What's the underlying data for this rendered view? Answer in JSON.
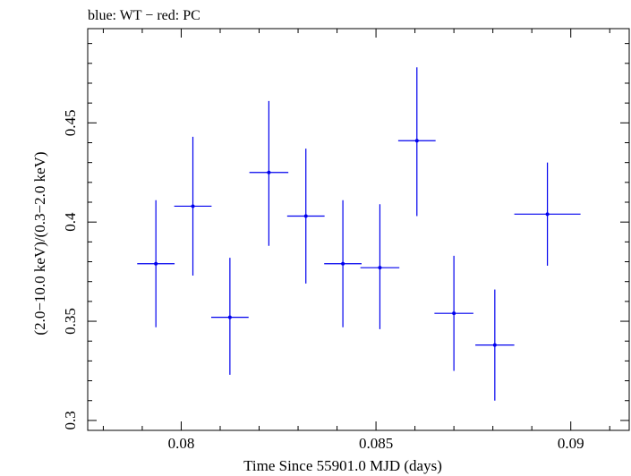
{
  "chart_data": {
    "type": "scatter",
    "title": "blue: WT − red: PC",
    "xlabel": "Time Since 55901.0 MJD (days)",
    "ylabel": "(2.0−10.0 keV)/(0.3−2.0 keV)",
    "xlim": [
      0.0776,
      0.0915
    ],
    "ylim": [
      0.295,
      0.4975
    ],
    "x_ticks": [
      {
        "value": 0.08,
        "label": "0.08"
      },
      {
        "value": 0.085,
        "label": "0.085"
      },
      {
        "value": 0.09,
        "label": "0.09"
      }
    ],
    "y_ticks": [
      {
        "value": 0.3,
        "label": "0.3"
      },
      {
        "value": 0.35,
        "label": "0.35"
      },
      {
        "value": 0.4,
        "label": "0.4"
      },
      {
        "value": 0.45,
        "label": "0.45"
      }
    ],
    "x_minor_step": 0.001,
    "y_minor_step": 0.01,
    "series": [
      {
        "name": "WT",
        "color": "#0000ee",
        "points": [
          {
            "x": 0.07935,
            "y": 0.379,
            "xerr": 0.00048,
            "ylo": 0.347,
            "yhi": 0.411
          },
          {
            "x": 0.0803,
            "y": 0.408,
            "xerr": 0.00048,
            "ylo": 0.373,
            "yhi": 0.443
          },
          {
            "x": 0.08125,
            "y": 0.352,
            "xerr": 0.00048,
            "ylo": 0.323,
            "yhi": 0.382
          },
          {
            "x": 0.08225,
            "y": 0.425,
            "xerr": 0.0005,
            "ylo": 0.388,
            "yhi": 0.461
          },
          {
            "x": 0.0832,
            "y": 0.403,
            "xerr": 0.00048,
            "ylo": 0.369,
            "yhi": 0.437
          },
          {
            "x": 0.08415,
            "y": 0.379,
            "xerr": 0.00048,
            "ylo": 0.347,
            "yhi": 0.411
          },
          {
            "x": 0.0851,
            "y": 0.377,
            "xerr": 0.0005,
            "ylo": 0.346,
            "yhi": 0.409
          },
          {
            "x": 0.08605,
            "y": 0.441,
            "xerr": 0.00048,
            "ylo": 0.403,
            "yhi": 0.478
          },
          {
            "x": 0.087,
            "y": 0.354,
            "xerr": 0.0005,
            "ylo": 0.325,
            "yhi": 0.383
          },
          {
            "x": 0.08805,
            "y": 0.338,
            "xerr": 0.0005,
            "ylo": 0.31,
            "yhi": 0.366
          },
          {
            "x": 0.0894,
            "y": 0.404,
            "xerr": 0.00085,
            "ylo": 0.378,
            "yhi": 0.43
          }
        ]
      }
    ]
  }
}
